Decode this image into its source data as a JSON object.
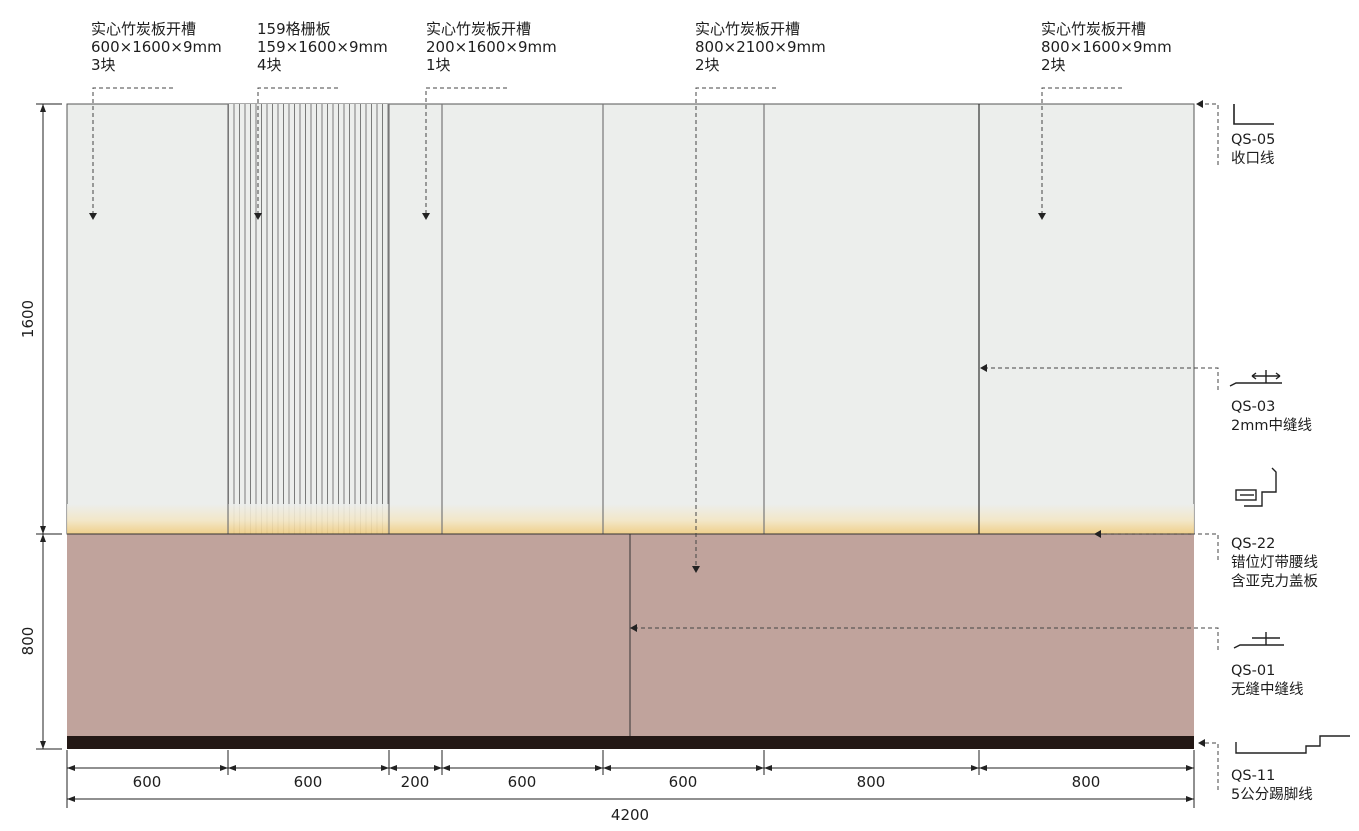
{
  "top_labels": [
    {
      "title": "实心竹炭板开槽",
      "spec": "600×1600×9mm",
      "count": "3块"
    },
    {
      "title": "159格栅板",
      "spec": "159×1600×9mm",
      "count": "4块"
    },
    {
      "title": "实心竹炭板开槽",
      "spec": "200×1600×9mm",
      "count": "1块"
    },
    {
      "title": "实心竹炭板开槽",
      "spec": "800×2100×9mm",
      "count": "2块"
    },
    {
      "title": "实心竹炭板开槽",
      "spec": "800×1600×9mm",
      "count": "2块"
    }
  ],
  "right_labels": [
    {
      "code": "QS-05",
      "name": "收口线"
    },
    {
      "code": "QS-03",
      "name": "2mm中缝线"
    },
    {
      "code": "QS-22",
      "name": "错位灯带腰线",
      "name2": "含亚克力盖板"
    },
    {
      "code": "QS-01",
      "name": "无缝中缝线"
    },
    {
      "code": "QS-11",
      "name": "5公分踢脚线"
    }
  ],
  "segment_widths": [
    "600",
    "600",
    "200",
    "600",
    "600",
    "800",
    "800"
  ],
  "total_width": "4200",
  "upper_height": "1600",
  "lower_height": "800",
  "colors": {
    "upper_panel": "#eceeec",
    "lower_panel": "#c0a39c",
    "skirting": "#231815",
    "glow": "#f3d28a",
    "line": "#555555"
  }
}
